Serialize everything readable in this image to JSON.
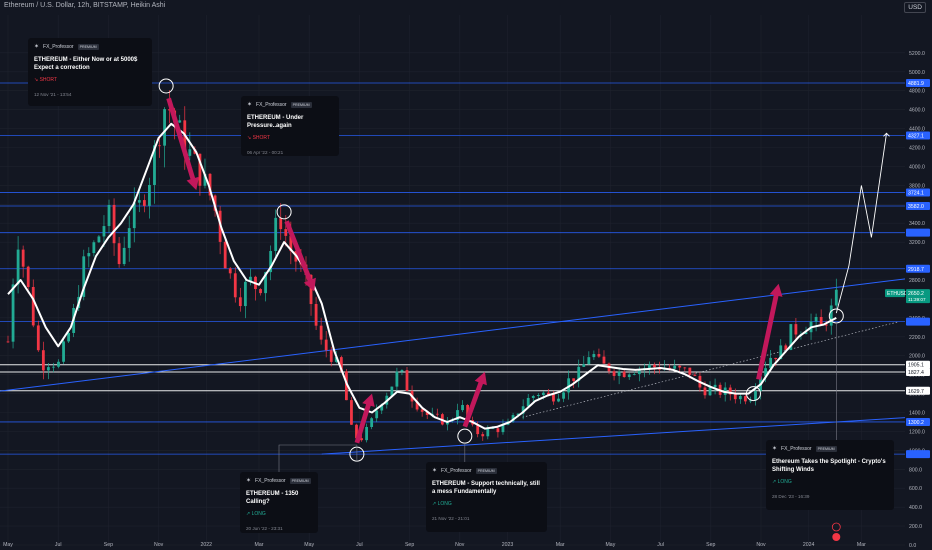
{
  "header": {
    "title": "Ethereum / U.S. Dollar, 12h, BITSTAMP, Heikin Ashi",
    "currency": "USD"
  },
  "colors": {
    "background": "#131722",
    "bull": "#22ab94",
    "bear": "#f23645",
    "level_line": "#2962ff",
    "arrow": "#c2185b",
    "ma": "#ffffff"
  },
  "icons": [
    "sigma-icon",
    "flag-icon"
  ],
  "chart_data": {
    "type": "candlestick",
    "symbol": "ETHUSD",
    "last_price": "2650.2",
    "countdown": "11:39:07",
    "ylim": [
      0,
      5600
    ],
    "x_tick_labels": [
      {
        "label": "May",
        "t": 0.0
      },
      {
        "label": "Jul",
        "t": 2.0
      },
      {
        "label": "Sep",
        "t": 4.0
      },
      {
        "label": "Nov",
        "t": 6.0
      },
      {
        "label": "2022",
        "t": 7.9
      },
      {
        "label": "Mar",
        "t": 10.0
      },
      {
        "label": "May",
        "t": 12.0
      },
      {
        "label": "Jul",
        "t": 14.0
      },
      {
        "label": "Sep",
        "t": 16.0
      },
      {
        "label": "Nov",
        "t": 18.0
      },
      {
        "label": "2023",
        "t": 19.9
      },
      {
        "label": "Mar",
        "t": 22.0
      },
      {
        "label": "May",
        "t": 24.0
      },
      {
        "label": "Jul",
        "t": 26.0
      },
      {
        "label": "Sep",
        "t": 28.0
      },
      {
        "label": "Nov",
        "t": 30.0
      },
      {
        "label": "2024",
        "t": 31.9
      },
      {
        "label": "Mar",
        "t": 34.0
      }
    ],
    "y_tick_labels": [
      {
        "label": "5200.0",
        "v": 5200
      },
      {
        "label": "5000.0",
        "v": 5000
      },
      {
        "label": "4800.0",
        "v": 4800
      },
      {
        "label": "4600.0",
        "v": 4600
      },
      {
        "label": "4400.0",
        "v": 4400
      },
      {
        "label": "4200.0",
        "v": 4200
      },
      {
        "label": "4000.0",
        "v": 4000
      },
      {
        "label": "3800.0",
        "v": 3800
      },
      {
        "label": "3600.0",
        "v": 3600
      },
      {
        "label": "3400.0",
        "v": 3400
      },
      {
        "label": "3200.0",
        "v": 3200
      },
      {
        "label": "2800.0",
        "v": 2800
      },
      {
        "label": "2600.0",
        "v": 2600
      },
      {
        "label": "2400.0",
        "v": 2400
      },
      {
        "label": "2200.0",
        "v": 2200
      },
      {
        "label": "2000.0",
        "v": 2000
      },
      {
        "label": "1800.0",
        "v": 1800
      },
      {
        "label": "1600.0",
        "v": 1600
      },
      {
        "label": "1400.0",
        "v": 1400
      },
      {
        "label": "1200.0",
        "v": 1200
      },
      {
        "label": "1000.0",
        "v": 1000
      },
      {
        "label": "800.0",
        "v": 800
      },
      {
        "label": "600.0",
        "v": 600
      },
      {
        "label": "400.0",
        "v": 400
      },
      {
        "label": "200.0",
        "v": 200
      },
      {
        "label": "0.0",
        "v": 0
      }
    ],
    "levels": [
      {
        "value": 4881.9,
        "label": "4881.9",
        "color": "#2962ff"
      },
      {
        "value": 4327.1,
        "label": "4327.1",
        "color": "#2962ff"
      },
      {
        "value": 3724.1,
        "label": "3724.1",
        "color": "#2962ff"
      },
      {
        "value": 3582.0,
        "label": "3582.0",
        "color": "#2962ff"
      },
      {
        "value": 3300.0,
        "label": "",
        "color": "#2962ff"
      },
      {
        "value": 2918.7,
        "label": "2918.7",
        "color": "#2962ff"
      },
      {
        "value": 2360.0,
        "label": "",
        "color": "#2962ff"
      },
      {
        "value": 1905.1,
        "label": "1905.1",
        "color": "#ffffff"
      },
      {
        "value": 1827.4,
        "label": "1827.4",
        "color": "#ffffff"
      },
      {
        "value": 1629.7,
        "label": "1629.7",
        "color": "#ffffff"
      },
      {
        "value": 1300.2,
        "label": "1300.2",
        "color": "#2962ff"
      },
      {
        "value": 960.0,
        "label": "",
        "color": "#2962ff"
      }
    ],
    "trendlines": [
      {
        "from": [
          -0.5,
          1620
        ],
        "to": [
          36,
          2820
        ],
        "color": "#2962ff"
      },
      {
        "from": [
          12.5,
          960
        ],
        "to": [
          36,
          1350
        ],
        "color": "#2962ff"
      }
    ],
    "dotted_trendline": {
      "from": [
        20.5,
        1350
      ],
      "to": [
        35.5,
        2360
      ]
    },
    "price_path": [
      [
        0.0,
        2150
      ],
      [
        0.35,
        3300
      ],
      [
        0.8,
        2700
      ],
      [
        1.3,
        1900
      ],
      [
        1.7,
        1950
      ],
      [
        2.0,
        1900
      ],
      [
        2.5,
        2300
      ],
      [
        3.0,
        2950
      ],
      [
        3.5,
        3200
      ],
      [
        4.0,
        3500
      ],
      [
        4.4,
        2950
      ],
      [
        4.8,
        3400
      ],
      [
        5.2,
        3550
      ],
      [
        5.6,
        3850
      ],
      [
        6.0,
        4350
      ],
      [
        6.3,
        4700
      ],
      [
        6.6,
        4500
      ],
      [
        7.0,
        4250
      ],
      [
        7.4,
        4050
      ],
      [
        7.8,
        3850
      ],
      [
        8.2,
        3600
      ],
      [
        8.7,
        2950
      ],
      [
        9.2,
        2600
      ],
      [
        9.6,
        2800
      ],
      [
        10.0,
        2700
      ],
      [
        10.4,
        3050
      ],
      [
        10.8,
        3500
      ],
      [
        11.2,
        3150
      ],
      [
        11.6,
        2950
      ],
      [
        12.0,
        2650
      ],
      [
        12.4,
        2150
      ],
      [
        12.9,
        2000
      ],
      [
        13.3,
        1800
      ],
      [
        13.7,
        1200
      ],
      [
        14.0,
        1100
      ],
      [
        14.4,
        1250
      ],
      [
        14.8,
        1500
      ],
      [
        15.2,
        1650
      ],
      [
        15.6,
        1850
      ],
      [
        16.0,
        1600
      ],
      [
        16.4,
        1450
      ],
      [
        16.8,
        1350
      ],
      [
        17.2,
        1330
      ],
      [
        17.6,
        1280
      ],
      [
        18.0,
        1520
      ],
      [
        18.4,
        1250
      ],
      [
        18.8,
        1170
      ],
      [
        19.2,
        1220
      ],
      [
        19.6,
        1230
      ],
      [
        20.0,
        1280
      ],
      [
        20.4,
        1450
      ],
      [
        20.8,
        1560
      ],
      [
        21.2,
        1620
      ],
      [
        21.6,
        1560
      ],
      [
        22.0,
        1620
      ],
      [
        22.4,
        1760
      ],
      [
        22.8,
        1820
      ],
      [
        23.2,
        2050
      ],
      [
        23.6,
        1900
      ],
      [
        24.0,
        1870
      ],
      [
        24.4,
        1820
      ],
      [
        24.8,
        1860
      ],
      [
        25.2,
        1870
      ],
      [
        25.6,
        1880
      ],
      [
        26.0,
        1890
      ],
      [
        26.4,
        1860
      ],
      [
        26.8,
        1840
      ],
      [
        27.2,
        1830
      ],
      [
        27.6,
        1650
      ],
      [
        28.0,
        1640
      ],
      [
        28.4,
        1620
      ],
      [
        28.8,
        1600
      ],
      [
        29.2,
        1560
      ],
      [
        29.6,
        1580
      ],
      [
        30.0,
        1830
      ],
      [
        30.4,
        2000
      ],
      [
        30.8,
        2050
      ],
      [
        31.2,
        2250
      ],
      [
        31.6,
        2300
      ],
      [
        32.0,
        2350
      ],
      [
        32.4,
        2300
      ],
      [
        32.8,
        2480
      ],
      [
        33.0,
        2600
      ]
    ],
    "moving_average": [
      [
        0.0,
        2650
      ],
      [
        0.5,
        2800
      ],
      [
        1.0,
        2600
      ],
      [
        1.5,
        2300
      ],
      [
        2.0,
        2100
      ],
      [
        2.5,
        2300
      ],
      [
        3.0,
        2700
      ],
      [
        3.5,
        3050
      ],
      [
        4.0,
        3250
      ],
      [
        4.5,
        3400
      ],
      [
        5.0,
        3600
      ],
      [
        5.5,
        3950
      ],
      [
        6.0,
        4300
      ],
      [
        6.5,
        4450
      ],
      [
        7.0,
        4350
      ],
      [
        7.5,
        4150
      ],
      [
        8.0,
        3800
      ],
      [
        8.5,
        3350
      ],
      [
        9.0,
        3000
      ],
      [
        9.5,
        2800
      ],
      [
        10.0,
        2750
      ],
      [
        10.5,
        2950
      ],
      [
        11.0,
        3200
      ],
      [
        11.5,
        3050
      ],
      [
        12.0,
        2850
      ],
      [
        12.5,
        2550
      ],
      [
        13.0,
        2050
      ],
      [
        13.5,
        1700
      ],
      [
        14.0,
        1450
      ],
      [
        14.5,
        1400
      ],
      [
        15.0,
        1500
      ],
      [
        15.5,
        1620
      ],
      [
        16.0,
        1600
      ],
      [
        16.5,
        1450
      ],
      [
        17.0,
        1350
      ],
      [
        17.5,
        1300
      ],
      [
        18.0,
        1350
      ],
      [
        18.5,
        1300
      ],
      [
        19.0,
        1230
      ],
      [
        19.5,
        1250
      ],
      [
        20.0,
        1300
      ],
      [
        20.5,
        1400
      ],
      [
        21.0,
        1520
      ],
      [
        21.5,
        1580
      ],
      [
        22.0,
        1620
      ],
      [
        22.5,
        1700
      ],
      [
        23.0,
        1800
      ],
      [
        23.5,
        1900
      ],
      [
        24.0,
        1880
      ],
      [
        24.5,
        1860
      ],
      [
        25.0,
        1850
      ],
      [
        25.5,
        1860
      ],
      [
        26.0,
        1870
      ],
      [
        26.5,
        1850
      ],
      [
        27.0,
        1800
      ],
      [
        27.5,
        1730
      ],
      [
        28.0,
        1670
      ],
      [
        28.5,
        1620
      ],
      [
        29.0,
        1600
      ],
      [
        29.5,
        1600
      ],
      [
        30.0,
        1700
      ],
      [
        30.5,
        1900
      ],
      [
        31.0,
        2050
      ],
      [
        31.5,
        2200
      ],
      [
        32.0,
        2300
      ],
      [
        32.5,
        2330
      ],
      [
        33.0,
        2400
      ]
    ],
    "projection_path": [
      [
        33.0,
        2450
      ],
      [
        33.5,
        2950
      ],
      [
        34.0,
        3800
      ],
      [
        34.4,
        3250
      ],
      [
        35.0,
        4350
      ]
    ],
    "marker_circles": [
      [
        6.3,
        4850
      ],
      [
        11.0,
        3520
      ],
      [
        13.9,
        960
      ],
      [
        18.2,
        1150
      ],
      [
        29.7,
        1600
      ],
      [
        33.0,
        2420
      ]
    ],
    "signal_arrows": [
      {
        "from": [
          6.4,
          4720
        ],
        "to": [
          7.5,
          3750
        ],
        "side": "down"
      },
      {
        "from": [
          11.1,
          3420
        ],
        "to": [
          12.2,
          2680
        ],
        "side": "down"
      },
      {
        "from": [
          13.9,
          1080
        ],
        "to": [
          14.5,
          1600
        ],
        "side": "up"
      },
      {
        "from": [
          18.2,
          1250
        ],
        "to": [
          19.0,
          1830
        ],
        "side": "up"
      },
      {
        "from": [
          29.9,
          1750
        ],
        "to": [
          30.7,
          2760
        ],
        "side": "up"
      }
    ],
    "candle_count": 165
  },
  "ideas": [
    {
      "author": "FX_Professor",
      "badge": "PREMIUM",
      "title": "ETHEREUM - Either Now or at 5000$ Expect a correction",
      "direction": "SHORT",
      "date": "12 Nov '21 - 13:54"
    },
    {
      "author": "FX_Professor",
      "badge": "PREMIUM",
      "title": "ETHEREUM - Under Pressure..again",
      "direction": "SHORT",
      "date": "06 Apr '22 - 00:21"
    },
    {
      "author": "FX_Professor",
      "badge": "PREMIUM",
      "title": "ETHEREUM - 1350 Calling?",
      "direction": "LONG",
      "date": "20 Jun '22 - 23:31"
    },
    {
      "author": "FX_Professor",
      "badge": "PREMIUM",
      "title": "ETHEREUM - Support technically, still a mess Fundamentally",
      "direction": "LONG",
      "date": "21 Nov '22 - 21:01"
    },
    {
      "author": "FX_Professor",
      "badge": "PREMIUM",
      "title": "Ethereum Takes the Spotlight - Crypto's Shifting Winds",
      "direction": "LONG",
      "date": "28 Dec '23 - 16:39"
    }
  ]
}
